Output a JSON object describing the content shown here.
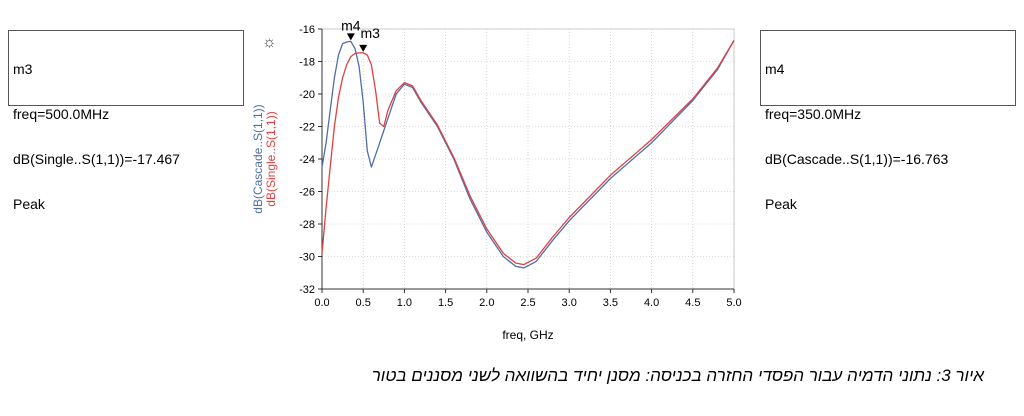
{
  "markers": {
    "m3": {
      "name": "m3",
      "freq": "freq=500.0MHz",
      "value": "dB(Single..S(1,1))=-17.467",
      "mode": "Peak"
    },
    "m4": {
      "name": "m4",
      "freq": "freq=350.0MHz",
      "value": "dB(Cascade..S(1,1))=-16.763",
      "mode": "Peak"
    }
  },
  "caption": "איור 3:  נתוני הדמיה עבור הפסדי החזרה בכניסה: מסנן יחיד בהשוואה לשני מסננים בטור",
  "sun_icon": "☼",
  "chart_data": {
    "type": "line",
    "xlabel": "freq, GHz",
    "ylabel_series": [
      "dB(Cascade..S(1,1))",
      "dB(Single..S(1,1))"
    ],
    "xlim": [
      0,
      5
    ],
    "ylim": [
      -32,
      -16
    ],
    "x_ticks": [
      0.0,
      0.5,
      1.0,
      1.5,
      2.0,
      2.5,
      3.0,
      3.5,
      4.0,
      4.5,
      5.0
    ],
    "x_tick_labels": [
      "0.0",
      "0.5",
      "1.0",
      "1.5",
      "2.0",
      "2.5",
      "3.0",
      "3.5",
      "4.0",
      "4.5",
      "5.0"
    ],
    "y_ticks": [
      -32,
      -30,
      -28,
      -26,
      -24,
      -22,
      -20,
      -18,
      -16
    ],
    "y_tick_labels": [
      "-32",
      "-30",
      "-28",
      "-26",
      "-24",
      "-22",
      "-20",
      "-18",
      "-16"
    ],
    "grid": true,
    "colors": {
      "cascade": "#4f6ea8",
      "single": "#e04040",
      "grid": "#bbbbbb",
      "axis": "#333333"
    },
    "series": [
      {
        "name": "dB(Cascade..S(1,1))",
        "color": "#4f6ea8",
        "x": [
          0.0,
          0.05,
          0.1,
          0.15,
          0.2,
          0.25,
          0.3,
          0.35,
          0.4,
          0.45,
          0.5,
          0.55,
          0.6,
          0.7,
          0.8,
          0.9,
          1.0,
          1.1,
          1.2,
          1.4,
          1.6,
          1.8,
          2.0,
          2.2,
          2.35,
          2.45,
          2.6,
          2.8,
          3.0,
          3.5,
          4.0,
          4.5,
          4.8,
          5.0
        ],
        "y": [
          -24.5,
          -23.0,
          -21.0,
          -19.0,
          -17.6,
          -16.9,
          -16.8,
          -16.763,
          -17.2,
          -18.3,
          -20.5,
          -23.5,
          -24.5,
          -23.0,
          -21.5,
          -20.0,
          -19.4,
          -19.6,
          -20.5,
          -22.0,
          -24.0,
          -26.5,
          -28.5,
          -30.0,
          -30.6,
          -30.7,
          -30.3,
          -29.0,
          -27.8,
          -25.2,
          -23.0,
          -20.4,
          -18.5,
          -16.7
        ]
      },
      {
        "name": "dB(Single..S(1,1))",
        "color": "#e04040",
        "x": [
          0.0,
          0.05,
          0.1,
          0.15,
          0.2,
          0.25,
          0.3,
          0.35,
          0.4,
          0.45,
          0.5,
          0.55,
          0.6,
          0.65,
          0.7,
          0.75,
          0.8,
          0.9,
          1.0,
          1.1,
          1.2,
          1.4,
          1.6,
          1.8,
          2.0,
          2.2,
          2.35,
          2.45,
          2.6,
          2.8,
          3.0,
          3.5,
          4.0,
          4.5,
          4.8,
          5.0
        ],
        "y": [
          -29.8,
          -27.0,
          -24.5,
          -22.0,
          -20.2,
          -19.0,
          -18.2,
          -17.7,
          -17.5,
          -17.47,
          -17.467,
          -17.6,
          -18.2,
          -19.8,
          -21.8,
          -22.0,
          -21.0,
          -19.8,
          -19.3,
          -19.5,
          -20.4,
          -21.9,
          -23.9,
          -26.3,
          -28.3,
          -29.8,
          -30.4,
          -30.5,
          -30.1,
          -28.8,
          -27.6,
          -25.0,
          -22.8,
          -20.3,
          -18.4,
          -16.7
        ]
      }
    ],
    "marker_points": [
      {
        "label": "m4",
        "x": 0.35,
        "y": -16.763
      },
      {
        "label": "m3",
        "x": 0.5,
        "y": -17.467
      }
    ]
  }
}
